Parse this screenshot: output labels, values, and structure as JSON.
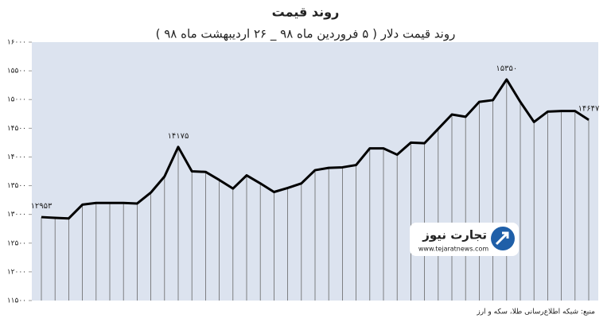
{
  "chart_data": {
    "type": "line",
    "title": "روند قیمت",
    "subtitle": "روند قیمت دلار ( ۵ فروردین ماه ۹۸ _ ۲۶ اردیبهشت ماه ۹۸ )",
    "source": "منبع: شبکه اطلاع‌رسانی طلا، سکه و ارز",
    "logo_text": "تجارت نیوز",
    "logo_url": "www.tejaratnews.com",
    "color": "#000000",
    "area_color": "#dce3ef",
    "values": [
      12953,
      12940,
      12930,
      13170,
      13200,
      13200,
      13200,
      13190,
      13380,
      13660,
      14175,
      13750,
      13740,
      13600,
      13450,
      13680,
      13540,
      13390,
      13460,
      13540,
      13770,
      13810,
      13820,
      13860,
      14150,
      14150,
      14040,
      14250,
      14240,
      14490,
      14740,
      14700,
      14960,
      14990,
      15350,
      14960,
      14610,
      14790,
      14800,
      14800,
      14647
    ],
    "value_labels": [
      "۱۲۹۵۳",
      null,
      null,
      null,
      null,
      null,
      null,
      null,
      null,
      null,
      "۱۴۱۷۵",
      null,
      null,
      null,
      null,
      null,
      null,
      null,
      null,
      null,
      null,
      null,
      null,
      null,
      null,
      null,
      null,
      null,
      null,
      null,
      null,
      null,
      null,
      null,
      "۱۵۳۵۰",
      null,
      null,
      null,
      null,
      null,
      "۱۴۶۴۷"
    ],
    "ylim": [
      11500,
      16000
    ],
    "yticks": [
      {
        "value": 16000,
        "label": "۱۶۰۰۰"
      },
      {
        "value": 15500,
        "label": "۱۵۵۰۰"
      },
      {
        "value": 15000,
        "label": "۱۵۰۰۰"
      },
      {
        "value": 14500,
        "label": "۱۴۵۰۰"
      },
      {
        "value": 14000,
        "label": "۱۴۰۰۰"
      },
      {
        "value": 13500,
        "label": "۱۳۵۰۰"
      },
      {
        "value": 13000,
        "label": "۱۳۰۰۰"
      },
      {
        "value": 12500,
        "label": "۱۲۵۰۰"
      },
      {
        "value": 12000,
        "label": "۱۲۰۰۰"
      },
      {
        "value": 11500,
        "label": "۱۱۵۰۰"
      }
    ],
    "drop_lines": true
  }
}
